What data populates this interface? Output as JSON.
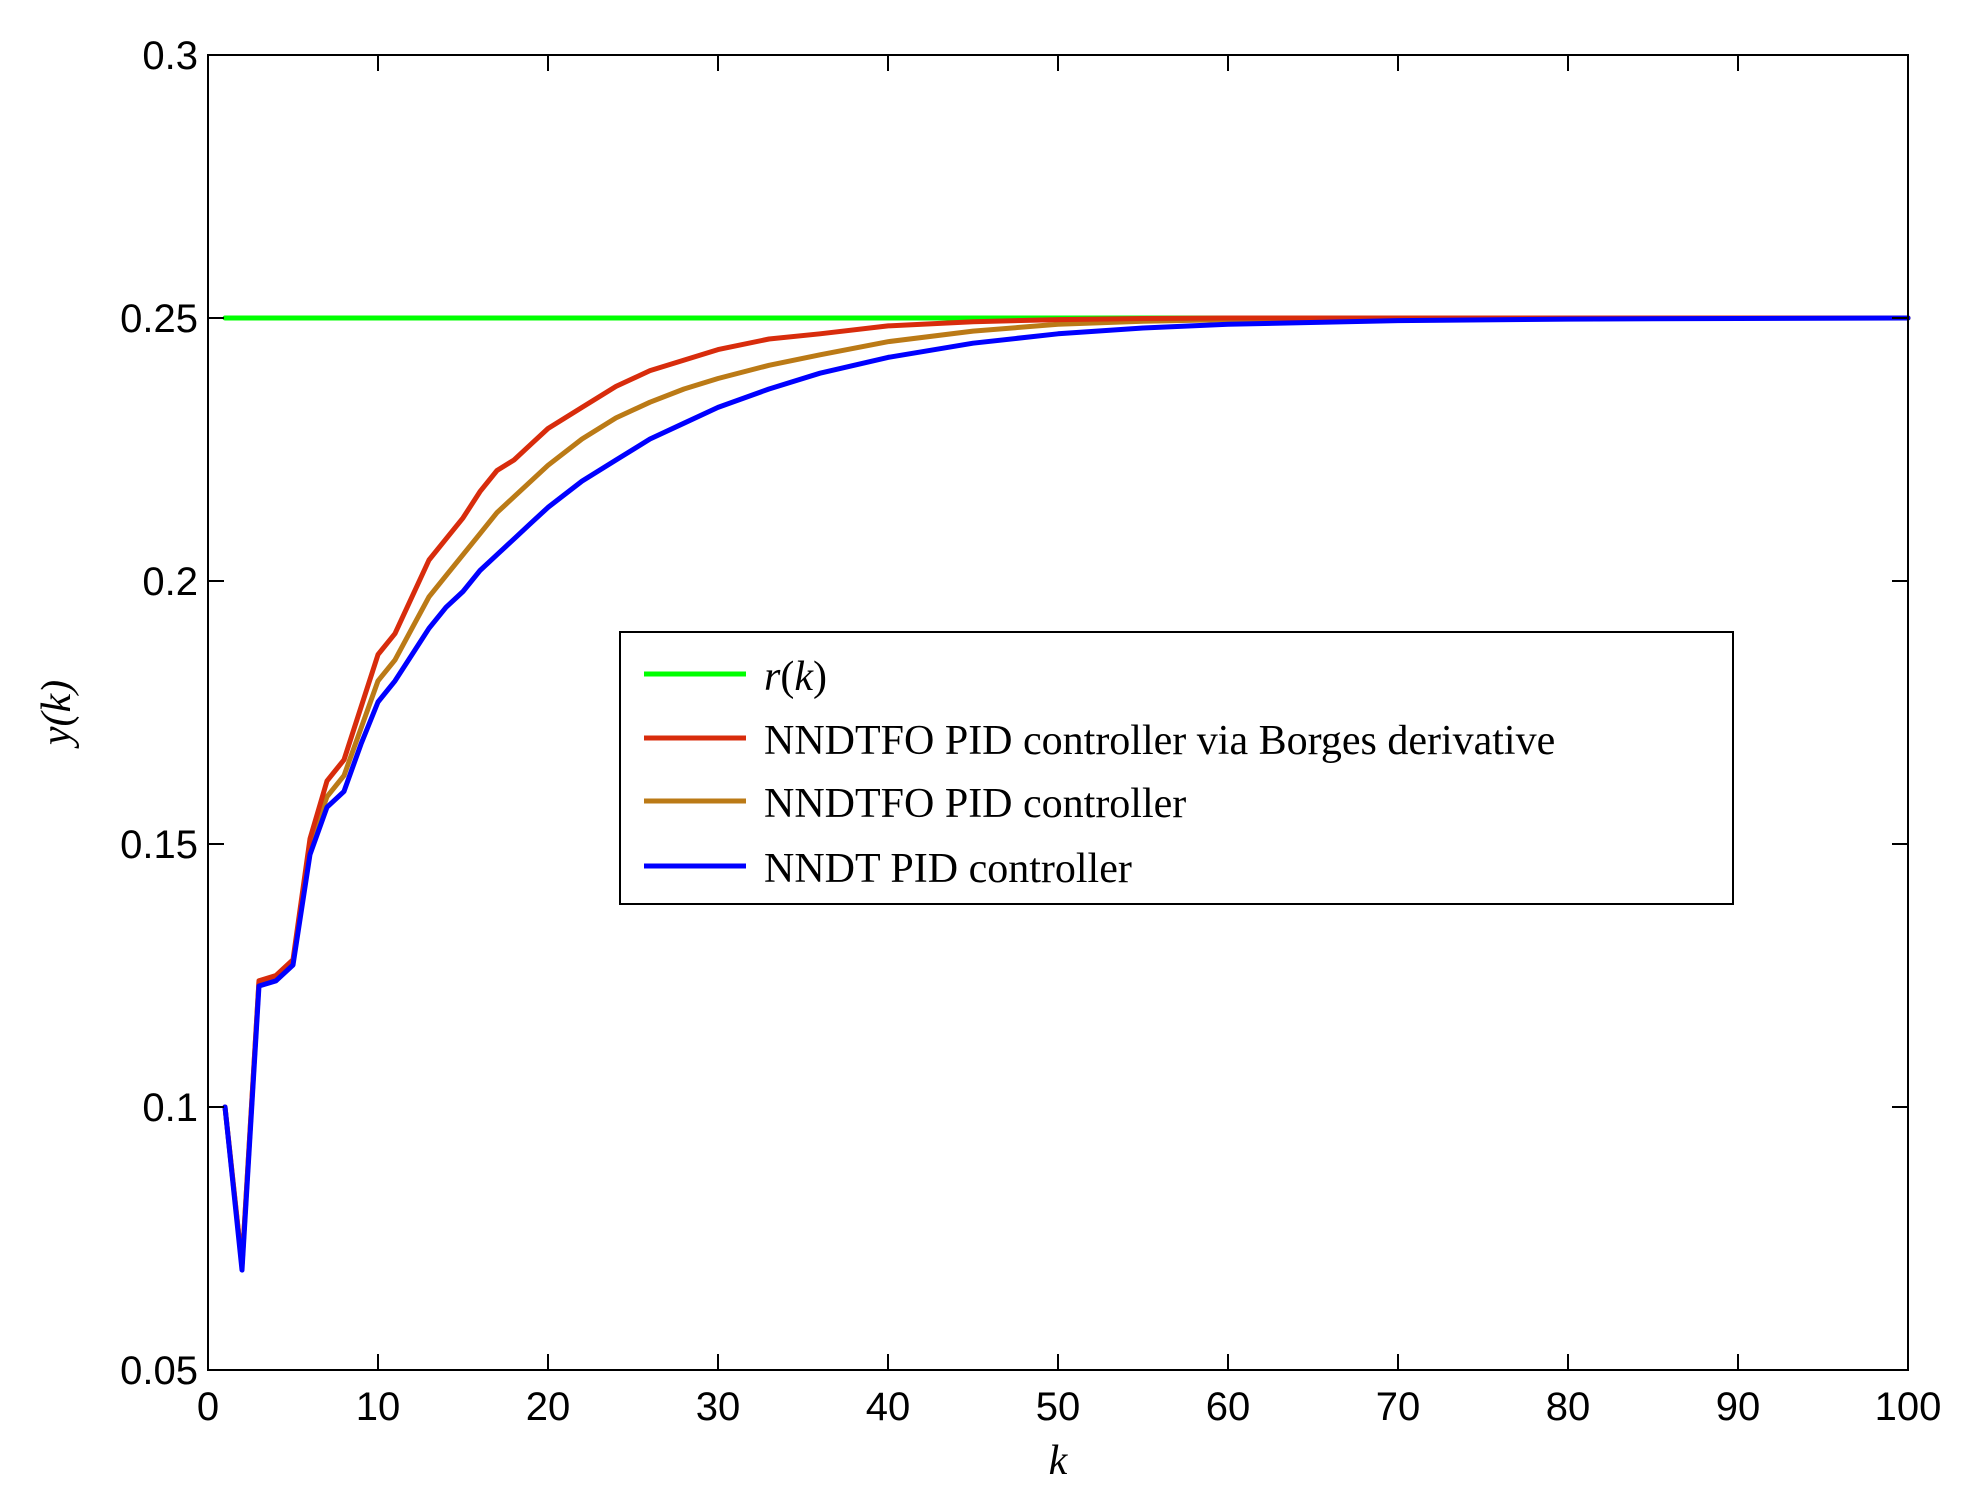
{
  "chart_data": {
    "type": "line",
    "title": "",
    "xlabel": "k",
    "ylabel": "y(k)",
    "xlim": [
      0,
      100
    ],
    "ylim": [
      0.05,
      0.3
    ],
    "x_ticks": [
      0,
      10,
      20,
      30,
      40,
      50,
      60,
      70,
      80,
      90,
      100
    ],
    "y_ticks": [
      0.05,
      0.1,
      0.15,
      0.2,
      0.25,
      0.3
    ],
    "x_tick_labels": [
      "0",
      "10",
      "20",
      "30",
      "40",
      "50",
      "60",
      "70",
      "80",
      "90",
      "100"
    ],
    "y_tick_labels": [
      "0.05",
      "0.1",
      "0.15",
      "0.2",
      "0.25",
      "0.3"
    ],
    "grid": false,
    "legend_position": "center-right",
    "series": [
      {
        "name": "r(k)",
        "legend_parts": [
          {
            "text": "r",
            "italic": true
          },
          {
            "text": "(",
            "italic": false
          },
          {
            "text": "k",
            "italic": true
          },
          {
            "text": ")",
            "italic": false
          }
        ],
        "color": "#00ff00",
        "x": [
          1,
          100
        ],
        "y": [
          0.25,
          0.25
        ]
      },
      {
        "name": "NNDTFO PID controller via Borges derivative",
        "color": "#d82c0c",
        "x": [
          1,
          2,
          3,
          4,
          5,
          6,
          7,
          8,
          9,
          10,
          11,
          12,
          13,
          14,
          15,
          16,
          17,
          18,
          19,
          20,
          22,
          24,
          26,
          28,
          30,
          33,
          36,
          40,
          45,
          50,
          55,
          60,
          70,
          80,
          90,
          100
        ],
        "y": [
          0.1,
          0.07,
          0.124,
          0.125,
          0.128,
          0.151,
          0.162,
          0.166,
          0.176,
          0.186,
          0.19,
          0.197,
          0.204,
          0.208,
          0.212,
          0.217,
          0.221,
          0.223,
          0.226,
          0.229,
          0.233,
          0.237,
          0.24,
          0.242,
          0.244,
          0.246,
          0.247,
          0.2485,
          0.2493,
          0.2497,
          0.2499,
          0.25,
          0.25,
          0.25,
          0.25,
          0.25
        ]
      },
      {
        "name": "NNDTFO PID controller",
        "color": "#bb7a16",
        "x": [
          1,
          2,
          3,
          4,
          5,
          6,
          7,
          8,
          9,
          10,
          11,
          12,
          13,
          14,
          15,
          16,
          17,
          18,
          19,
          20,
          22,
          24,
          26,
          28,
          30,
          33,
          36,
          40,
          45,
          50,
          55,
          60,
          70,
          80,
          90,
          100
        ],
        "y": [
          0.1,
          0.07,
          0.124,
          0.1245,
          0.1275,
          0.15,
          0.159,
          0.163,
          0.172,
          0.181,
          0.185,
          0.191,
          0.197,
          0.201,
          0.205,
          0.209,
          0.213,
          0.216,
          0.219,
          0.222,
          0.227,
          0.231,
          0.234,
          0.2365,
          0.2385,
          0.241,
          0.243,
          0.2455,
          0.2475,
          0.2488,
          0.2494,
          0.2497,
          0.2499,
          0.25,
          0.25,
          0.25
        ]
      },
      {
        "name": "NNDT PID controller",
        "color": "#0000ff",
        "x": [
          1,
          2,
          3,
          4,
          5,
          6,
          7,
          8,
          9,
          10,
          11,
          12,
          13,
          14,
          15,
          16,
          17,
          18,
          19,
          20,
          22,
          24,
          26,
          28,
          30,
          33,
          36,
          40,
          45,
          50,
          55,
          60,
          70,
          80,
          90,
          100
        ],
        "y": [
          0.1,
          0.069,
          0.123,
          0.124,
          0.127,
          0.148,
          0.157,
          0.16,
          0.169,
          0.177,
          0.181,
          0.186,
          0.191,
          0.195,
          0.198,
          0.202,
          0.205,
          0.208,
          0.211,
          0.214,
          0.219,
          0.223,
          0.227,
          0.23,
          0.233,
          0.2365,
          0.2395,
          0.2425,
          0.2452,
          0.247,
          0.2481,
          0.2488,
          0.2495,
          0.2498,
          0.2499,
          0.25
        ]
      }
    ]
  }
}
